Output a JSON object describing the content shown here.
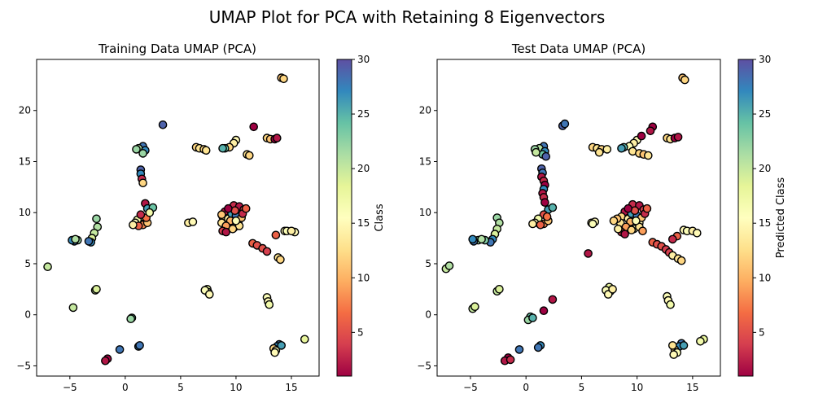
{
  "figure": {
    "title": "UMAP Plot for PCA with Retaining 8 Eigenvectors"
  },
  "chart_data": [
    {
      "type": "scatter",
      "title": "Training Data UMAP (PCA)",
      "xlabel": "",
      "ylabel": "",
      "xlim": [
        -8,
        17.5
      ],
      "ylim": [
        -6,
        25
      ],
      "xticks": [
        -5,
        0,
        5,
        10,
        15
      ],
      "yticks": [
        -5,
        0,
        5,
        10,
        15,
        20
      ],
      "grid": false,
      "colorbar": {
        "label": "Class",
        "cmap": "Spectral",
        "range": [
          1,
          30
        ],
        "ticks": [
          5,
          10,
          15,
          20,
          25,
          30
        ]
      },
      "points": [
        [
          14.1,
          23.2,
          11
        ],
        [
          14.3,
          23.1,
          12
        ],
        [
          3.4,
          18.6,
          29
        ],
        [
          11.6,
          18.4,
          1
        ],
        [
          1.6,
          16.5,
          28
        ],
        [
          1.2,
          16.3,
          21
        ],
        [
          1.0,
          16.2,
          22
        ],
        [
          1.8,
          16.1,
          27
        ],
        [
          1.6,
          15.8,
          22
        ],
        [
          6.4,
          16.4,
          12
        ],
        [
          6.7,
          16.3,
          13
        ],
        [
          7.1,
          16.2,
          12
        ],
        [
          7.3,
          16.1,
          13
        ],
        [
          10.0,
          17.1,
          15
        ],
        [
          9.8,
          16.8,
          14
        ],
        [
          9.4,
          16.4,
          12
        ],
        [
          9.0,
          16.3,
          24
        ],
        [
          8.8,
          16.3,
          25
        ],
        [
          11.0,
          15.7,
          13
        ],
        [
          11.2,
          15.6,
          12
        ],
        [
          12.8,
          17.3,
          12
        ],
        [
          13.1,
          17.2,
          11
        ],
        [
          13.5,
          17.2,
          1
        ],
        [
          13.7,
          17.3,
          2
        ],
        [
          1.4,
          14.2,
          29
        ],
        [
          1.4,
          13.8,
          27
        ],
        [
          1.5,
          13.3,
          3
        ],
        [
          1.6,
          12.9,
          12
        ],
        [
          1.8,
          10.9,
          2
        ],
        [
          2.0,
          10.4,
          26
        ],
        [
          2.5,
          10.5,
          24
        ],
        [
          1.5,
          9.6,
          20
        ],
        [
          1.1,
          9.3,
          17
        ],
        [
          0.9,
          9.0,
          15
        ],
        [
          1.6,
          8.8,
          8
        ],
        [
          1.2,
          8.7,
          6
        ],
        [
          2.0,
          9.0,
          11
        ],
        [
          1.9,
          9.5,
          7
        ],
        [
          2.2,
          10.0,
          17
        ],
        [
          0.7,
          8.8,
          14
        ],
        [
          1.4,
          9.8,
          3
        ],
        [
          -2.6,
          9.4,
          22
        ],
        [
          -2.5,
          8.6,
          21
        ],
        [
          -2.8,
          8.0,
          20
        ],
        [
          -3.0,
          7.5,
          19
        ],
        [
          -3.1,
          7.1,
          27
        ],
        [
          -3.3,
          7.2,
          28
        ],
        [
          -4.3,
          7.3,
          22
        ],
        [
          -4.6,
          7.2,
          28
        ],
        [
          -4.8,
          7.3,
          27
        ],
        [
          -4.5,
          7.4,
          21
        ],
        [
          -7.0,
          4.7,
          20
        ],
        [
          -2.7,
          2.4,
          20
        ],
        [
          -2.6,
          2.5,
          19
        ],
        [
          -4.7,
          0.7,
          20
        ],
        [
          5.7,
          9.0,
          14
        ],
        [
          6.1,
          9.1,
          15
        ],
        [
          9.8,
          10.7,
          3
        ],
        [
          10.3,
          10.6,
          2
        ],
        [
          10.7,
          10.3,
          4
        ],
        [
          9.0,
          10.1,
          2
        ],
        [
          8.8,
          9.6,
          12
        ],
        [
          9.3,
          9.4,
          14
        ],
        [
          9.6,
          9.9,
          26
        ],
        [
          10.0,
          9.7,
          28
        ],
        [
          9.5,
          9.2,
          10
        ],
        [
          8.7,
          9.0,
          13
        ],
        [
          10.2,
          9.0,
          15
        ],
        [
          10.5,
          9.5,
          11
        ],
        [
          9.1,
          8.7,
          9
        ],
        [
          9.8,
          8.5,
          16
        ],
        [
          10.3,
          8.7,
          13
        ],
        [
          8.8,
          8.2,
          4
        ],
        [
          9.1,
          8.1,
          2
        ],
        [
          9.7,
          8.4,
          12
        ],
        [
          10.0,
          9.2,
          16
        ],
        [
          9.9,
          10.2,
          5
        ],
        [
          9.3,
          10.4,
          1
        ],
        [
          10.6,
          9.9,
          3
        ],
        [
          8.7,
          9.8,
          11
        ],
        [
          10.9,
          10.4,
          6
        ],
        [
          11.5,
          7.0,
          6
        ],
        [
          11.9,
          6.8,
          5
        ],
        [
          12.4,
          6.5,
          5
        ],
        [
          12.8,
          6.2,
          4
        ],
        [
          13.6,
          7.8,
          6
        ],
        [
          13.8,
          5.6,
          13
        ],
        [
          14.0,
          5.4,
          12
        ],
        [
          14.4,
          8.2,
          15
        ],
        [
          14.6,
          8.2,
          16
        ],
        [
          15.3,
          8.1,
          15
        ],
        [
          15.0,
          8.2,
          14
        ],
        [
          7.4,
          2.5,
          18
        ],
        [
          7.5,
          2.2,
          17
        ],
        [
          7.2,
          2.4,
          16
        ],
        [
          7.6,
          2.0,
          15
        ],
        [
          12.8,
          1.7,
          16
        ],
        [
          12.9,
          1.3,
          15
        ],
        [
          13.0,
          1.0,
          17
        ],
        [
          0.6,
          -0.3,
          24
        ],
        [
          0.5,
          -0.4,
          22
        ],
        [
          -1.6,
          -4.3,
          1
        ],
        [
          -1.8,
          -4.5,
          2
        ],
        [
          -0.5,
          -3.4,
          28
        ],
        [
          1.2,
          -3.1,
          27
        ],
        [
          1.3,
          -3.0,
          28
        ],
        [
          13.9,
          -2.9,
          28
        ],
        [
          13.7,
          -3.1,
          27
        ],
        [
          13.4,
          -3.3,
          12
        ],
        [
          13.6,
          -3.5,
          16
        ],
        [
          13.5,
          -3.7,
          15
        ],
        [
          14.1,
          -3.0,
          26
        ],
        [
          16.2,
          -2.4,
          18
        ]
      ]
    },
    {
      "type": "scatter",
      "title": "Test Data UMAP (PCA)",
      "xlabel": "",
      "ylabel": "",
      "xlim": [
        -8,
        17.5
      ],
      "ylim": [
        -6,
        25
      ],
      "xticks": [
        -5,
        0,
        5,
        10,
        15
      ],
      "yticks": [
        -5,
        0,
        5,
        10,
        15,
        20
      ],
      "grid": false,
      "colorbar": {
        "label": "Predicted Class",
        "cmap": "Spectral",
        "range": [
          1,
          30
        ],
        "ticks": [
          5,
          10,
          15,
          20,
          25,
          30
        ]
      },
      "points": [
        [
          14.1,
          23.2,
          11
        ],
        [
          14.3,
          23.0,
          12
        ],
        [
          3.3,
          18.5,
          29
        ],
        [
          3.5,
          18.7,
          28
        ],
        [
          11.4,
          18.4,
          1
        ],
        [
          11.2,
          18.0,
          2
        ],
        [
          1.6,
          16.5,
          28
        ],
        [
          1.2,
          16.3,
          21
        ],
        [
          0.8,
          16.2,
          22
        ],
        [
          1.7,
          16.0,
          27
        ],
        [
          1.5,
          15.7,
          24
        ],
        [
          0.9,
          15.9,
          20
        ],
        [
          1.8,
          15.5,
          29
        ],
        [
          6.0,
          16.4,
          12
        ],
        [
          6.4,
          16.3,
          13
        ],
        [
          6.8,
          16.2,
          12
        ],
        [
          7.3,
          16.2,
          14
        ],
        [
          6.6,
          15.9,
          13
        ],
        [
          10.0,
          17.1,
          15
        ],
        [
          9.7,
          16.8,
          14
        ],
        [
          9.3,
          16.5,
          16
        ],
        [
          8.8,
          16.4,
          25
        ],
        [
          8.6,
          16.3,
          26
        ],
        [
          9.6,
          16.0,
          13
        ],
        [
          10.4,
          17.5,
          1
        ],
        [
          10.2,
          15.8,
          12
        ],
        [
          10.6,
          15.7,
          11
        ],
        [
          11.0,
          15.6,
          13
        ],
        [
          12.7,
          17.3,
          12
        ],
        [
          13.0,
          17.2,
          13
        ],
        [
          13.4,
          17.3,
          1
        ],
        [
          13.7,
          17.4,
          2
        ],
        [
          1.4,
          14.3,
          29
        ],
        [
          1.5,
          13.9,
          28
        ],
        [
          1.4,
          13.5,
          2
        ],
        [
          1.6,
          13.1,
          3
        ],
        [
          1.7,
          12.7,
          1
        ],
        [
          1.6,
          12.3,
          27
        ],
        [
          1.5,
          11.9,
          2
        ],
        [
          1.6,
          11.5,
          3
        ],
        [
          1.7,
          11.0,
          1
        ],
        [
          2.0,
          10.3,
          26
        ],
        [
          2.4,
          10.5,
          25
        ],
        [
          1.6,
          9.8,
          5
        ],
        [
          1.1,
          9.4,
          17
        ],
        [
          0.8,
          9.0,
          15
        ],
        [
          1.6,
          8.9,
          8
        ],
        [
          1.3,
          8.8,
          6
        ],
        [
          2.0,
          9.2,
          11
        ],
        [
          0.6,
          8.9,
          14
        ],
        [
          1.9,
          9.6,
          7
        ],
        [
          -2.6,
          9.5,
          22
        ],
        [
          -2.4,
          9.0,
          21
        ],
        [
          -2.6,
          8.4,
          20
        ],
        [
          -2.8,
          7.9,
          19
        ],
        [
          -3.0,
          7.4,
          27
        ],
        [
          -3.2,
          7.1,
          28
        ],
        [
          -3.7,
          7.3,
          23
        ],
        [
          -4.3,
          7.3,
          22
        ],
        [
          -4.7,
          7.2,
          28
        ],
        [
          -4.8,
          7.4,
          27
        ],
        [
          -4.0,
          7.4,
          21
        ],
        [
          -7.2,
          4.5,
          20
        ],
        [
          -6.9,
          4.8,
          21
        ],
        [
          -2.6,
          2.3,
          20
        ],
        [
          -2.4,
          2.5,
          19
        ],
        [
          -4.8,
          0.6,
          20
        ],
        [
          -4.6,
          0.8,
          19
        ],
        [
          5.9,
          9.0,
          14
        ],
        [
          6.2,
          9.1,
          15
        ],
        [
          6.0,
          8.9,
          16
        ],
        [
          9.6,
          10.8,
          3
        ],
        [
          10.2,
          10.7,
          2
        ],
        [
          10.6,
          10.3,
          4
        ],
        [
          8.9,
          10.1,
          2
        ],
        [
          8.6,
          9.6,
          12
        ],
        [
          9.2,
          9.4,
          14
        ],
        [
          9.5,
          9.9,
          26
        ],
        [
          10.0,
          9.7,
          28
        ],
        [
          9.4,
          9.1,
          10
        ],
        [
          8.5,
          9.0,
          13
        ],
        [
          10.2,
          9.0,
          15
        ],
        [
          10.4,
          9.5,
          11
        ],
        [
          9.0,
          8.6,
          9
        ],
        [
          9.7,
          8.4,
          16
        ],
        [
          10.2,
          8.6,
          13
        ],
        [
          8.6,
          8.1,
          4
        ],
        [
          8.9,
          7.9,
          2
        ],
        [
          9.5,
          8.3,
          12
        ],
        [
          9.9,
          9.2,
          16
        ],
        [
          9.8,
          10.2,
          5
        ],
        [
          9.2,
          10.4,
          1
        ],
        [
          10.7,
          9.9,
          3
        ],
        [
          8.2,
          9.4,
          11
        ],
        [
          10.9,
          10.4,
          6
        ],
        [
          8.3,
          8.4,
          14
        ],
        [
          7.9,
          9.2,
          12
        ],
        [
          10.5,
          8.2,
          9
        ],
        [
          11.4,
          7.1,
          6
        ],
        [
          11.8,
          6.9,
          5
        ],
        [
          12.2,
          6.7,
          5
        ],
        [
          12.6,
          6.4,
          4
        ],
        [
          12.9,
          6.1,
          4
        ],
        [
          13.2,
          5.8,
          14
        ],
        [
          13.6,
          7.7,
          6
        ],
        [
          13.2,
          7.4,
          3
        ],
        [
          13.7,
          5.5,
          13
        ],
        [
          14.0,
          5.3,
          12
        ],
        [
          14.2,
          8.3,
          15
        ],
        [
          14.5,
          8.2,
          16
        ],
        [
          15.0,
          8.2,
          14
        ],
        [
          15.4,
          8.0,
          15
        ],
        [
          7.5,
          2.7,
          18
        ],
        [
          7.6,
          2.3,
          17
        ],
        [
          7.2,
          2.4,
          16
        ],
        [
          7.4,
          2.0,
          15
        ],
        [
          7.8,
          2.5,
          14
        ],
        [
          12.7,
          1.8,
          16
        ],
        [
          12.8,
          1.4,
          15
        ],
        [
          13.0,
          1.0,
          17
        ],
        [
          5.6,
          6.0,
          2
        ],
        [
          2.4,
          1.5,
          2
        ],
        [
          1.6,
          0.4,
          1
        ],
        [
          0.4,
          -0.2,
          24
        ],
        [
          0.2,
          -0.5,
          22
        ],
        [
          0.6,
          -0.3,
          25
        ],
        [
          -1.6,
          -4.2,
          1
        ],
        [
          -1.9,
          -4.5,
          2
        ],
        [
          -1.4,
          -4.4,
          3
        ],
        [
          -0.6,
          -3.4,
          28
        ],
        [
          1.3,
          -3.0,
          27
        ],
        [
          1.1,
          -3.2,
          28
        ],
        [
          14.0,
          -2.8,
          28
        ],
        [
          13.8,
          -3.1,
          27
        ],
        [
          13.4,
          -3.4,
          12
        ],
        [
          13.6,
          -3.7,
          16
        ],
        [
          13.3,
          -3.9,
          15
        ],
        [
          14.2,
          -3.0,
          26
        ],
        [
          13.2,
          -3.0,
          13
        ],
        [
          16.0,
          -2.4,
          18
        ],
        [
          15.7,
          -2.6,
          17
        ]
      ]
    }
  ]
}
